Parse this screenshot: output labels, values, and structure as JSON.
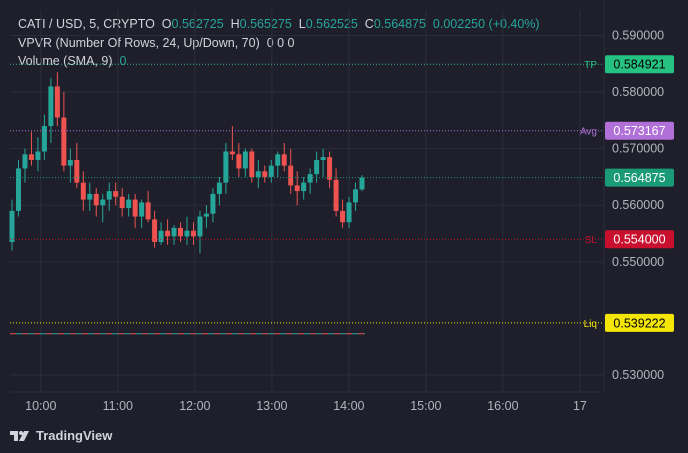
{
  "header": {
    "symbol": "CATI / USD, 5, CRYPTO",
    "o_label": "O",
    "o_val": "0.562725",
    "h_label": "H",
    "h_val": "0.565275",
    "l_label": "L",
    "l_val": "0.562525",
    "c_label": "C",
    "c_val": "0.564875",
    "change": "0.002250 (+0.40%)",
    "vpvr": "VPVR (Number Of Rows, 24, Up/Down, 70)",
    "vpvr_vals": "0  0  0",
    "volume": "Volume (SMA, 9)",
    "volume_val": "0"
  },
  "logo_text": "TradingView",
  "colors": {
    "up": "#26a69a",
    "down": "#ef5350",
    "bg": "#1e1f2a",
    "grid": "#2a2e39"
  },
  "chart_data": {
    "type": "candlestick",
    "y_ticks": [
      "0.590000",
      "0.580000",
      "0.570000",
      "0.560000",
      "0.550000",
      "0.530000"
    ],
    "y_tick_values": [
      0.59,
      0.58,
      0.57,
      0.56,
      0.55,
      0.53
    ],
    "x_ticks": [
      "10:00",
      "11:00",
      "12:00",
      "13:00",
      "14:00",
      "15:00",
      "16:00",
      "17"
    ],
    "x_tick_hours": [
      10,
      11,
      12,
      13,
      14,
      15,
      16,
      17
    ],
    "ylim": [
      0.527,
      0.5945
    ],
    "xlim_hours": [
      9.6,
      17.3
    ],
    "lines": [
      {
        "label": "TP",
        "value": 0.584921,
        "text": "0.584921",
        "color": "#26c281",
        "style": "dotted",
        "box_text_color": "#000000"
      },
      {
        "label": "Avg",
        "value": 0.573167,
        "text": "0.573167",
        "color": "#b070d8",
        "style": "dotted",
        "box_text_color": "#ffffff"
      },
      {
        "label": "",
        "value": 0.564875,
        "text": "0.564875",
        "color": "#1a9a76",
        "style": "dotted",
        "box_text_color": "#ffffff"
      },
      {
        "label": "SL",
        "value": 0.554,
        "text": "0.554000",
        "color": "#c8102e",
        "style": "dotted",
        "box_text_color": "#ffffff"
      },
      {
        "label": "Liq",
        "value": 0.539222,
        "text": "0.539222",
        "color": "#f5e60a",
        "style": "dotted",
        "box_text_color": "#000000"
      }
    ],
    "dashed_line_value": 0.5373,
    "candles": [
      {
        "o": 0.5535,
        "h": 0.561,
        "l": 0.552,
        "c": 0.559
      },
      {
        "o": 0.559,
        "h": 0.568,
        "l": 0.558,
        "c": 0.5665
      },
      {
        "o": 0.5665,
        "h": 0.57,
        "l": 0.564,
        "c": 0.569
      },
      {
        "o": 0.569,
        "h": 0.573,
        "l": 0.567,
        "c": 0.568
      },
      {
        "o": 0.568,
        "h": 0.572,
        "l": 0.566,
        "c": 0.5695
      },
      {
        "o": 0.5695,
        "h": 0.576,
        "l": 0.568,
        "c": 0.574
      },
      {
        "o": 0.574,
        "h": 0.5825,
        "l": 0.571,
        "c": 0.581
      },
      {
        "o": 0.581,
        "h": 0.5835,
        "l": 0.574,
        "c": 0.5755
      },
      {
        "o": 0.5755,
        "h": 0.58,
        "l": 0.566,
        "c": 0.567
      },
      {
        "o": 0.567,
        "h": 0.57,
        "l": 0.564,
        "c": 0.568
      },
      {
        "o": 0.568,
        "h": 0.571,
        "l": 0.563,
        "c": 0.564
      },
      {
        "o": 0.564,
        "h": 0.566,
        "l": 0.559,
        "c": 0.561
      },
      {
        "o": 0.561,
        "h": 0.564,
        "l": 0.559,
        "c": 0.562
      },
      {
        "o": 0.562,
        "h": 0.563,
        "l": 0.558,
        "c": 0.56
      },
      {
        "o": 0.56,
        "h": 0.562,
        "l": 0.557,
        "c": 0.561
      },
      {
        "o": 0.561,
        "h": 0.564,
        "l": 0.559,
        "c": 0.5625
      },
      {
        "o": 0.5625,
        "h": 0.564,
        "l": 0.56,
        "c": 0.5615
      },
      {
        "o": 0.5615,
        "h": 0.563,
        "l": 0.558,
        "c": 0.5595
      },
      {
        "o": 0.5595,
        "h": 0.562,
        "l": 0.558,
        "c": 0.561
      },
      {
        "o": 0.561,
        "h": 0.562,
        "l": 0.556,
        "c": 0.558
      },
      {
        "o": 0.558,
        "h": 0.561,
        "l": 0.556,
        "c": 0.5605
      },
      {
        "o": 0.5605,
        "h": 0.5625,
        "l": 0.557,
        "c": 0.5575
      },
      {
        "o": 0.5575,
        "h": 0.559,
        "l": 0.5525,
        "c": 0.5535
      },
      {
        "o": 0.5535,
        "h": 0.557,
        "l": 0.553,
        "c": 0.5555
      },
      {
        "o": 0.5555,
        "h": 0.5575,
        "l": 0.553,
        "c": 0.5545
      },
      {
        "o": 0.5545,
        "h": 0.5565,
        "l": 0.553,
        "c": 0.556
      },
      {
        "o": 0.556,
        "h": 0.557,
        "l": 0.5535,
        "c": 0.5545
      },
      {
        "o": 0.5545,
        "h": 0.558,
        "l": 0.553,
        "c": 0.5555
      },
      {
        "o": 0.5555,
        "h": 0.557,
        "l": 0.553,
        "c": 0.5545
      },
      {
        "o": 0.5545,
        "h": 0.559,
        "l": 0.5515,
        "c": 0.558
      },
      {
        "o": 0.558,
        "h": 0.56,
        "l": 0.556,
        "c": 0.5585
      },
      {
        "o": 0.5585,
        "h": 0.563,
        "l": 0.557,
        "c": 0.562
      },
      {
        "o": 0.562,
        "h": 0.565,
        "l": 0.56,
        "c": 0.564
      },
      {
        "o": 0.564,
        "h": 0.571,
        "l": 0.562,
        "c": 0.5695
      },
      {
        "o": 0.5695,
        "h": 0.574,
        "l": 0.568,
        "c": 0.569
      },
      {
        "o": 0.569,
        "h": 0.571,
        "l": 0.565,
        "c": 0.5665
      },
      {
        "o": 0.5665,
        "h": 0.57,
        "l": 0.565,
        "c": 0.5695
      },
      {
        "o": 0.5695,
        "h": 0.57,
        "l": 0.564,
        "c": 0.565
      },
      {
        "o": 0.565,
        "h": 0.568,
        "l": 0.563,
        "c": 0.566
      },
      {
        "o": 0.566,
        "h": 0.567,
        "l": 0.564,
        "c": 0.565
      },
      {
        "o": 0.565,
        "h": 0.568,
        "l": 0.564,
        "c": 0.567
      },
      {
        "o": 0.567,
        "h": 0.5695,
        "l": 0.565,
        "c": 0.569
      },
      {
        "o": 0.569,
        "h": 0.571,
        "l": 0.566,
        "c": 0.567
      },
      {
        "o": 0.567,
        "h": 0.57,
        "l": 0.562,
        "c": 0.5635
      },
      {
        "o": 0.5635,
        "h": 0.566,
        "l": 0.56,
        "c": 0.5625
      },
      {
        "o": 0.5625,
        "h": 0.565,
        "l": 0.561,
        "c": 0.564
      },
      {
        "o": 0.564,
        "h": 0.5665,
        "l": 0.562,
        "c": 0.5655
      },
      {
        "o": 0.5655,
        "h": 0.5695,
        "l": 0.564,
        "c": 0.568
      },
      {
        "o": 0.568,
        "h": 0.57,
        "l": 0.565,
        "c": 0.5685
      },
      {
        "o": 0.5685,
        "h": 0.5695,
        "l": 0.563,
        "c": 0.5645
      },
      {
        "o": 0.5645,
        "h": 0.5665,
        "l": 0.558,
        "c": 0.559
      },
      {
        "o": 0.559,
        "h": 0.561,
        "l": 0.556,
        "c": 0.557
      },
      {
        "o": 0.557,
        "h": 0.5615,
        "l": 0.556,
        "c": 0.5605
      },
      {
        "o": 0.5605,
        "h": 0.564,
        "l": 0.559,
        "c": 0.5628
      },
      {
        "o": 0.5628,
        "h": 0.5653,
        "l": 0.5625,
        "c": 0.5649
      }
    ]
  }
}
